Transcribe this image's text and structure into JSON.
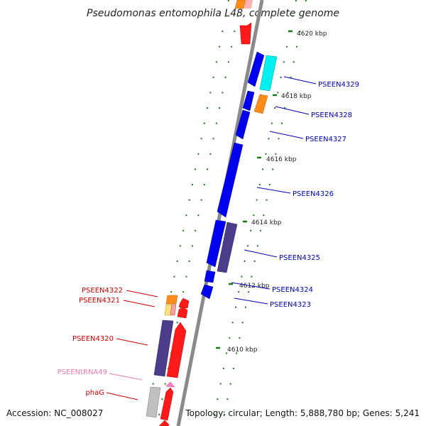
{
  "title": "Pseudomonas entomophila L48, complete genome",
  "footer": {
    "accession": "Accession: NC_008027",
    "topology": "Topology: circular; Length: 5,888,780 bp; Genes: 5,241"
  },
  "colors": {
    "backbone": "#8a8a8a",
    "tick": "#1a7a1a",
    "label_forward": "#cc0000",
    "label_reverse": "#0000b0",
    "label_trna": "#e87ab0"
  },
  "ticks": [
    {
      "label": "4620 kbp"
    },
    {
      "label": "4618 kbp"
    },
    {
      "label": "4616 kbp"
    },
    {
      "label": "4614 kbp"
    },
    {
      "label": "4612 kbp"
    },
    {
      "label": "4610 kbp"
    }
  ],
  "genes": [
    {
      "label": "PSEEN4329",
      "strand": "reverse"
    },
    {
      "label": "PSEEN4328",
      "strand": "reverse"
    },
    {
      "label": "PSEEN4327",
      "strand": "reverse"
    },
    {
      "label": "PSEEN4326",
      "strand": "reverse"
    },
    {
      "label": "PSEEN4325",
      "strand": "reverse"
    },
    {
      "label": "PSEEN4324",
      "strand": "reverse"
    },
    {
      "label": "PSEEN4323",
      "strand": "reverse"
    },
    {
      "label": "PSEEN4322",
      "strand": "forward"
    },
    {
      "label": "PSEEN4321",
      "strand": "forward"
    },
    {
      "label": "PSEEN4320",
      "strand": "forward"
    },
    {
      "label": "PSEENtRNA49",
      "strand": "trna"
    },
    {
      "label": "phaG",
      "strand": "forward"
    }
  ]
}
